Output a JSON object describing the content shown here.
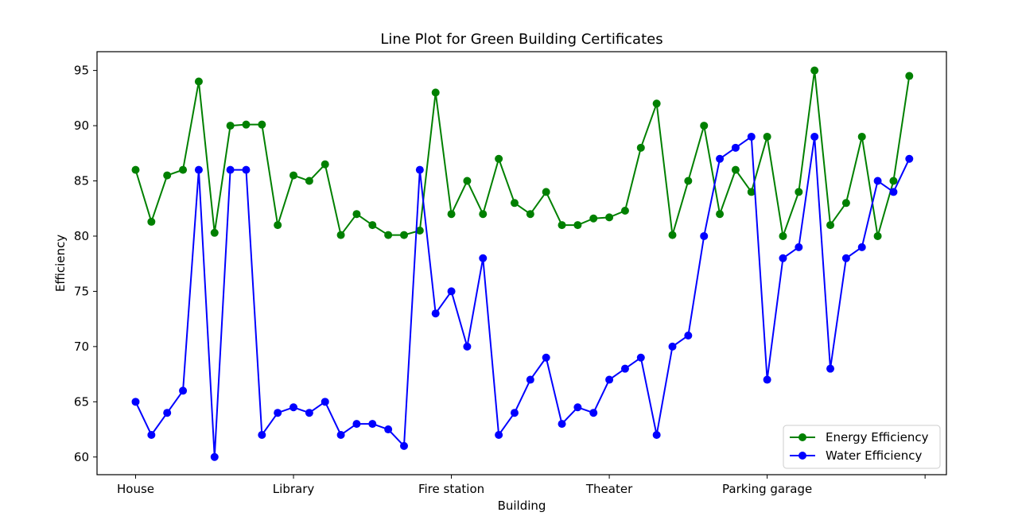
{
  "chart_data": {
    "type": "line",
    "title": "Line Plot for Green Building Certificates",
    "xlabel": "Building",
    "ylabel": "Efficiency",
    "ylim": [
      58.4,
      96.7
    ],
    "yticks": [
      60,
      65,
      70,
      75,
      80,
      85,
      90,
      95
    ],
    "xtick_labels": [
      "House",
      "Library",
      "Fire station",
      "Theater",
      "Parking garage",
      ""
    ],
    "legend_position": "bottom-right",
    "grid": false,
    "series": [
      {
        "name": "Energy Efficiency",
        "color": "#008000",
        "values": [
          86,
          81.3,
          85.5,
          86,
          94,
          80.3,
          90,
          90.1,
          90.1,
          81,
          85.5,
          85,
          86.5,
          80.1,
          82,
          81,
          80.1,
          80.1,
          80.5,
          93,
          82,
          85,
          82,
          87,
          83,
          82,
          84,
          81,
          81,
          81.6,
          81.7,
          82.3,
          88,
          92,
          80.1,
          85,
          90,
          82,
          86,
          84,
          89,
          80,
          84,
          95,
          81,
          83,
          89,
          80,
          85,
          94.5
        ]
      },
      {
        "name": "Water Efficiency",
        "color": "#0000ff",
        "values": [
          65,
          62,
          64,
          66,
          86,
          60,
          86,
          86,
          62,
          64,
          64.5,
          64,
          65,
          62,
          63,
          63,
          62.5,
          61,
          86,
          73,
          75,
          70,
          78,
          62,
          64,
          67,
          69,
          63,
          64.5,
          64,
          67,
          68,
          69,
          62,
          70,
          71,
          80,
          87,
          88,
          89,
          67,
          78,
          79,
          89,
          68,
          78,
          79,
          85,
          84,
          87
        ]
      }
    ]
  }
}
